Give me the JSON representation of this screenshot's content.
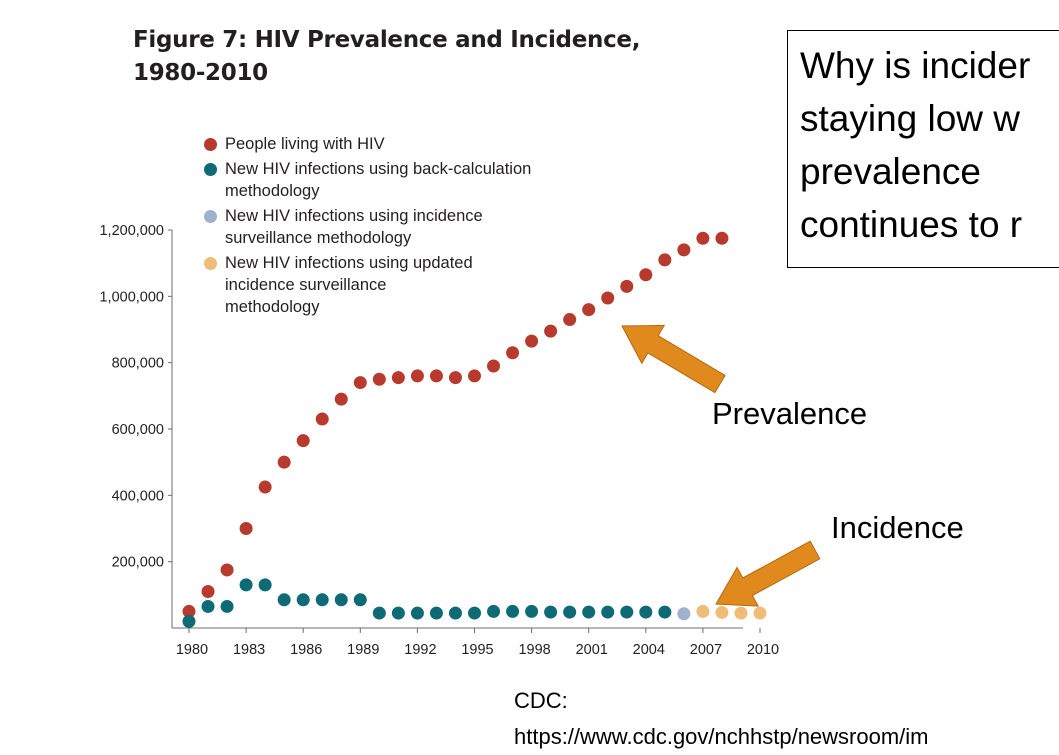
{
  "figure": {
    "title_line1": "Figure 7: HIV Prevalence and Incidence,",
    "title_line2": "1980-2010"
  },
  "legend": [
    {
      "label_lines": [
        "People living with HIV"
      ],
      "color": "#b83a2e"
    },
    {
      "label_lines": [
        "New HIV infections using back-calculation",
        "methodology"
      ],
      "color": "#0e6b75"
    },
    {
      "label_lines": [
        "New HIV infections using incidence",
        "surveillance methodology"
      ],
      "color": "#9fb1cc"
    },
    {
      "label_lines": [
        "New HIV infections using updated",
        "incidence surveillance",
        "methodology"
      ],
      "color": "#f0bc7a"
    }
  ],
  "question": {
    "lines": [
      "Why is incider",
      "staying low w",
      "prevalence",
      "continues to r"
    ]
  },
  "annotations": {
    "prevalence_label": "Prevalence",
    "incidence_label": "Incidence",
    "arrow_color": "#e08a1e"
  },
  "source": {
    "line1": "CDC:",
    "line2": "https://www.cdc.gov/nchhstp/newsroom/im"
  },
  "chart_data": {
    "type": "scatter",
    "title": "Figure 7: HIV Prevalence and Incidence, 1980-2010",
    "xlabel": "",
    "ylabel": "",
    "xlim": [
      1980,
      2010
    ],
    "ylim": [
      0,
      1200000
    ],
    "grid": false,
    "legend_position": "top-left",
    "x_ticks": [
      1980,
      1983,
      1986,
      1989,
      1992,
      1995,
      1998,
      2001,
      2004,
      2007,
      2010
    ],
    "y_ticks": [
      200000,
      400000,
      600000,
      800000,
      1000000,
      1200000
    ],
    "y_tick_labels": [
      "200,000",
      "400,000",
      "600,000",
      "800,000",
      "1,000,000",
      "1,200,000"
    ],
    "series": [
      {
        "name": "People living with HIV",
        "color": "#b83a2e",
        "x": [
          1980,
          1981,
          1982,
          1983,
          1984,
          1985,
          1986,
          1987,
          1988,
          1989,
          1990,
          1991,
          1992,
          1993,
          1994,
          1995,
          1996,
          1997,
          1998,
          1999,
          2000,
          2001,
          2002,
          2003,
          2004,
          2005,
          2006,
          2007,
          2008
        ],
        "y": [
          50000,
          110000,
          175000,
          300000,
          425000,
          500000,
          565000,
          630000,
          690000,
          740000,
          750000,
          755000,
          760000,
          760000,
          755000,
          760000,
          790000,
          830000,
          865000,
          895000,
          930000,
          960000,
          995000,
          1030000,
          1065000,
          1110000,
          1140000,
          1175000,
          1175000
        ]
      },
      {
        "name": "New HIV infections using back-calculation methodology",
        "color": "#0e6b75",
        "x": [
          1980,
          1981,
          1982,
          1983,
          1984,
          1985,
          1986,
          1987,
          1988,
          1989,
          1990,
          1991,
          1992,
          1993,
          1994,
          1995,
          1996,
          1997,
          1998,
          1999,
          2000,
          2001,
          2002,
          2003,
          2004,
          2005
        ],
        "y": [
          20000,
          65000,
          65000,
          130000,
          130000,
          85000,
          85000,
          85000,
          85000,
          85000,
          45000,
          45000,
          45000,
          45000,
          45000,
          45000,
          50000,
          50000,
          50000,
          48000,
          48000,
          48000,
          48000,
          48000,
          48000,
          48000
        ]
      },
      {
        "name": "New HIV infections using incidence surveillance methodology",
        "color": "#9fb1cc",
        "x": [
          2006
        ],
        "y": [
          43000
        ]
      },
      {
        "name": "New HIV infections using updated incidence surveillance methodology",
        "color": "#f0bc7a",
        "x": [
          2007,
          2008,
          2009,
          2010
        ],
        "y": [
          50000,
          47000,
          45000,
          45000
        ]
      }
    ]
  }
}
